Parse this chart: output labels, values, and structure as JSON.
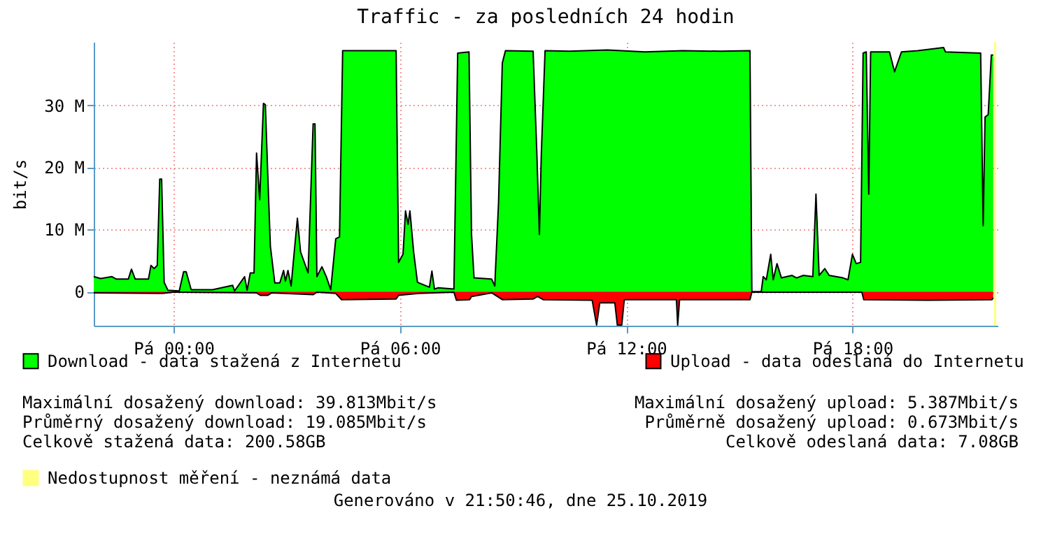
{
  "chart_data": {
    "type": "area",
    "title": "Traffic - za posledních 24 hodin",
    "ylabel": "bit/s",
    "xlim": [
      "2019-10-24T21:53",
      "2019-10-25T21:51"
    ],
    "xticks": [
      {
        "value": "2019-10-25T00:00",
        "label": "Pá 00:00"
      },
      {
        "value": "2019-10-25T06:00",
        "label": "Pá 06:00"
      },
      {
        "value": "2019-10-25T12:00",
        "label": "Pá 12:00"
      },
      {
        "value": "2019-10-25T18:00",
        "label": "Pá 18:00"
      }
    ],
    "ylim": [
      -5.5,
      40.2
    ],
    "yticks": [
      0,
      {
        "value": 10,
        "label": "10 M"
      },
      {
        "value": 20,
        "label": "20 M"
      },
      {
        "value": 30,
        "label": "30 M"
      }
    ],
    "grid": true,
    "legend": "bottom",
    "series": [
      {
        "name": "Download - data stažená z Internetu",
        "color": "#00ff00",
        "x": [
          "2019-10-24T21:53",
          "2019-10-24T22:04",
          "2019-10-24T22:22",
          "2019-10-24T22:29",
          "2019-10-24T22:48",
          "2019-10-24T22:53",
          "2019-10-24T22:59",
          "2019-10-24T23:20",
          "2019-10-24T23:24",
          "2019-10-24T23:29",
          "2019-10-24T23:34",
          "2019-10-24T23:38",
          "2019-10-24T23:41",
          "2019-10-24T23:45",
          "2019-10-24T23:51",
          "2019-10-25T00:09",
          "2019-10-25T00:16",
          "2019-10-25T00:20",
          "2019-10-25T00:28",
          "2019-10-25T01:02",
          "2019-10-25T01:34",
          "2019-10-25T01:37",
          "2019-10-25T01:53",
          "2019-10-25T01:57",
          "2019-10-25T02:02",
          "2019-10-25T02:08",
          "2019-10-25T02:12",
          "2019-10-25T02:17",
          "2019-10-25T02:23",
          "2019-10-25T02:26",
          "2019-10-25T02:31",
          "2019-10-25T02:34",
          "2019-10-25T02:41",
          "2019-10-25T02:49",
          "2019-10-25T02:55",
          "2019-10-25T02:58",
          "2019-10-25T03:02",
          "2019-10-25T03:07",
          "2019-10-25T03:13",
          "2019-10-25T03:17",
          "2019-10-25T03:22",
          "2019-10-25T03:34",
          "2019-10-25T03:42",
          "2019-10-25T03:45",
          "2019-10-25T03:48",
          "2019-10-25T03:56",
          "2019-10-25T04:03",
          "2019-10-25T04:10",
          "2019-10-25T04:18",
          "2019-10-25T04:24",
          "2019-10-25T04:29",
          "2019-10-25T05:54",
          "2019-10-25T05:58",
          "2019-10-25T06:05",
          "2019-10-25T06:09",
          "2019-10-25T06:13",
          "2019-10-25T06:16",
          "2019-10-25T06:22",
          "2019-10-25T06:28",
          "2019-10-25T06:47",
          "2019-10-25T06:51",
          "2019-10-25T06:55",
          "2019-10-25T07:01",
          "2019-10-25T07:26",
          "2019-10-25T07:32",
          "2019-10-25T07:50",
          "2019-10-25T07:54",
          "2019-10-25T07:58",
          "2019-10-25T08:26",
          "2019-10-25T08:31",
          "2019-10-25T08:37",
          "2019-10-25T08:43",
          "2019-10-25T08:48",
          "2019-10-25T09:32",
          "2019-10-25T09:38",
          "2019-10-25T09:42",
          "2019-10-25T09:45",
          "2019-10-25T09:51",
          "2019-10-25T10:30",
          "2019-10-25T11:30",
          "2019-10-25T12:30",
          "2019-10-25T13:30",
          "2019-10-25T14:30",
          "2019-10-25T15:17",
          "2019-10-25T15:20",
          "2019-10-25T15:35",
          "2019-10-25T15:38",
          "2019-10-25T15:43",
          "2019-10-25T15:50",
          "2019-10-25T15:54",
          "2019-10-25T16:00",
          "2019-10-25T16:07",
          "2019-10-25T16:24",
          "2019-10-25T16:31",
          "2019-10-25T16:42",
          "2019-10-25T16:57",
          "2019-10-25T17:02",
          "2019-10-25T17:07",
          "2019-10-25T17:16",
          "2019-10-25T17:23",
          "2019-10-25T17:45",
          "2019-10-25T17:53",
          "2019-10-25T18:00",
          "2019-10-25T18:06",
          "2019-10-25T18:13",
          "2019-10-25T18:17",
          "2019-10-25T18:22",
          "2019-10-25T18:26",
          "2019-10-25T18:29",
          "2019-10-25T18:59",
          "2019-10-25T19:07",
          "2019-10-25T19:18",
          "2019-10-25T19:44",
          "2019-10-25T20:25",
          "2019-10-25T20:28",
          "2019-10-25T21:24",
          "2019-10-25T21:28",
          "2019-10-25T21:31",
          "2019-10-25T21:36",
          "2019-10-25T21:41",
          "2019-10-25T21:44"
        ],
        "values": [
          2.4,
          2.1,
          2.4,
          2.0,
          2.0,
          3.6,
          2.0,
          2.0,
          4.2,
          3.7,
          4.2,
          18.1,
          18.1,
          1.5,
          0.2,
          0.1,
          3.2,
          3.2,
          0.3,
          0.3,
          1.0,
          0.1,
          2.4,
          0.2,
          3.0,
          3.0,
          22.3,
          14.8,
          30.3,
          30.1,
          15.5,
          7.3,
          1.4,
          1.4,
          3.4,
          1.7,
          3.4,
          0.9,
          7.5,
          11.8,
          6.4,
          3.0,
          27.0,
          27.0,
          2.4,
          4.0,
          2.4,
          0.3,
          8.5,
          8.8,
          38.8,
          38.8,
          4.7,
          6.0,
          13.0,
          10.8,
          13.0,
          6.3,
          1.5,
          0.7,
          3.3,
          0.4,
          0.6,
          0.4,
          38.4,
          38.6,
          9.2,
          2.2,
          2.0,
          0.9,
          14.3,
          36.8,
          38.8,
          38.7,
          22.0,
          9.2,
          22.0,
          38.8,
          38.7,
          38.9,
          38.6,
          38.8,
          38.7,
          38.8,
          0,
          0,
          2.4,
          1.9,
          6.0,
          1.9,
          4.5,
          2.2,
          2.6,
          2.2,
          2.6,
          2.4,
          15.7,
          2.6,
          3.7,
          2.6,
          2.2,
          1.9,
          6.0,
          4.5,
          4.7,
          38.4,
          38.6,
          15.7,
          38.6,
          38.6,
          35.4,
          38.6,
          38.8,
          39.3,
          38.6,
          38.4,
          10.6,
          28.1,
          28.5,
          38.1,
          38.1
        ]
      },
      {
        "name": "Upload - data odeslaná do Internetu",
        "color": "#ff0000",
        "x": [
          "2019-10-24T21:53",
          "2019-10-24T23:42",
          "2019-10-25T00:00",
          "2019-10-25T02:12",
          "2019-10-25T02:18",
          "2019-10-25T02:30",
          "2019-10-25T02:36",
          "2019-10-25T03:42",
          "2019-10-25T03:48",
          "2019-10-25T04:18",
          "2019-10-25T04:27",
          "2019-10-25T05:54",
          "2019-10-25T05:58",
          "2019-10-25T06:30",
          "2019-10-25T07:26",
          "2019-10-25T07:30",
          "2019-10-25T07:51",
          "2019-10-25T07:54",
          "2019-10-25T08:26",
          "2019-10-25T08:43",
          "2019-10-25T09:32",
          "2019-10-25T09:39",
          "2019-10-25T09:48",
          "2019-10-25T11:06",
          "2019-10-25T11:13",
          "2019-10-25T11:18",
          "2019-10-25T11:42",
          "2019-10-25T11:46",
          "2019-10-25T11:53",
          "2019-10-25T11:57",
          "2019-10-25T13:20",
          "2019-10-25T13:22",
          "2019-10-25T13:25",
          "2019-10-25T15:17",
          "2019-10-25T15:20",
          "2019-10-25T18:15",
          "2019-10-25T18:18",
          "2019-10-25T20:00",
          "2019-10-25T21:42",
          "2019-10-25T21:44"
        ],
        "values": [
          -0.2,
          -0.3,
          -0.1,
          -0.2,
          -0.6,
          -0.6,
          -0.2,
          -0.5,
          -0.1,
          -0.3,
          -1.3,
          -1.2,
          -0.6,
          -0.3,
          -0.1,
          -1.4,
          -1.3,
          -0.8,
          -0.2,
          -1.3,
          -1.2,
          -0.8,
          -1.3,
          -1.4,
          -5.4,
          -1.8,
          -1.8,
          -5.4,
          -5.4,
          -1.3,
          -1.3,
          -5.4,
          -1.3,
          -1.3,
          -0.1,
          -0.1,
          -1.3,
          -1.4,
          -1.3,
          -1.0
        ]
      }
    ],
    "ref_lines": [
      {
        "axis": "x",
        "value": "2019-10-25T21:47",
        "label": "Nedostupnost měření - neznámá data",
        "color": "#ffff80"
      }
    ],
    "annotations": [
      "Maximální dosažený download: 39.813Mbit/s",
      "Průměrný dosažený download: 19.085Mbit/s",
      "Celkově stažená data: 200.58GB",
      "Maximální dosažený upload: 5.387Mbit/s",
      "Průměrně dosažený upload: 0.673Mbit/s",
      "Celkově odeslaná data: 7.08GB",
      "Generováno v 21:50:46, dne 25.10.2019"
    ]
  }
}
